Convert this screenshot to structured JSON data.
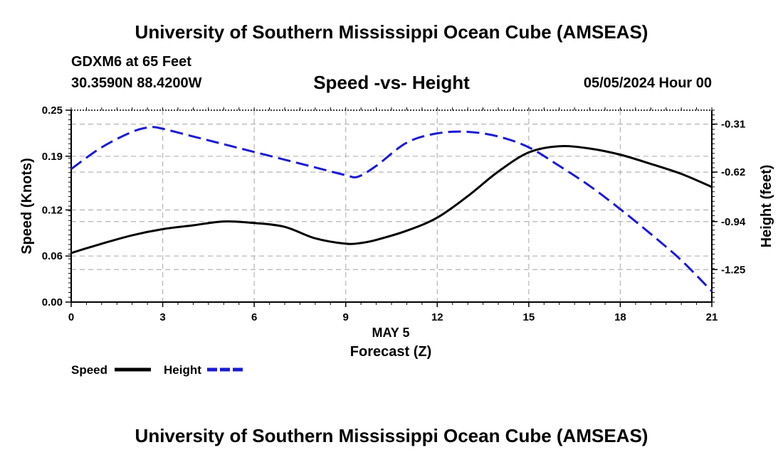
{
  "header": {
    "title": "University of Southern Mississippi Ocean Cube (AMSEAS)",
    "station": "GDXM6 at 65 Feet",
    "coords": "30.3590N  88.4200W",
    "subtitle": "Speed -vs- Height",
    "datetime": "05/05/2024 Hour 00"
  },
  "footer": {
    "title": "University of Southern Mississippi Ocean Cube (AMSEAS)"
  },
  "colors": {
    "speed": "#000000",
    "height": "#1a1ad6",
    "grid": "#b4b4b4"
  },
  "chart_data": {
    "type": "line",
    "xlabel_date": "MAY 5",
    "xlabel": "Forecast (Z)",
    "ylabel_left": "Speed (Knots)",
    "ylabel_right": "Height (feet)",
    "x_ticks": [
      "0",
      "3",
      "6",
      "9",
      "12",
      "15",
      "18",
      "21"
    ],
    "xlim": [
      0,
      21
    ],
    "ylim_left": [
      0,
      0.25
    ],
    "y_ticks_left": [
      "0.00",
      "0.06",
      "0.12",
      "0.19",
      "0.25"
    ],
    "ylim_right": [
      -1.46,
      -0.22
    ],
    "y_ticks_right": [
      "-0.31",
      "-0.62",
      "-0.94",
      "-1.25"
    ],
    "legend": [
      "Speed",
      "Height"
    ],
    "series": [
      {
        "name": "Speed",
        "axis": "left",
        "style": "solid",
        "x": [
          0,
          1,
          2,
          3,
          4,
          5,
          6,
          7,
          8,
          9,
          9.5,
          10,
          11,
          12,
          13,
          14,
          15,
          16,
          17,
          18,
          19,
          20,
          21
        ],
        "values": [
          0.064,
          0.076,
          0.087,
          0.095,
          0.1,
          0.105,
          0.103,
          0.098,
          0.083,
          0.076,
          0.077,
          0.081,
          0.093,
          0.11,
          0.138,
          0.17,
          0.195,
          0.203,
          0.2,
          0.192,
          0.18,
          0.167,
          0.15
        ]
      },
      {
        "name": "Height",
        "axis": "right",
        "style": "dashed",
        "x": [
          0,
          1,
          2,
          2.6,
          3,
          4,
          5,
          6,
          7,
          8,
          9,
          9.4,
          10,
          11,
          12,
          13,
          14,
          15,
          16,
          17,
          18,
          19,
          20,
          21
        ],
        "values": [
          -0.6,
          -0.46,
          -0.36,
          -0.33,
          -0.34,
          -0.39,
          -0.44,
          -0.49,
          -0.54,
          -0.59,
          -0.64,
          -0.65,
          -0.58,
          -0.43,
          -0.37,
          -0.36,
          -0.39,
          -0.46,
          -0.58,
          -0.71,
          -0.86,
          -1.02,
          -1.19,
          -1.39
        ]
      }
    ]
  }
}
